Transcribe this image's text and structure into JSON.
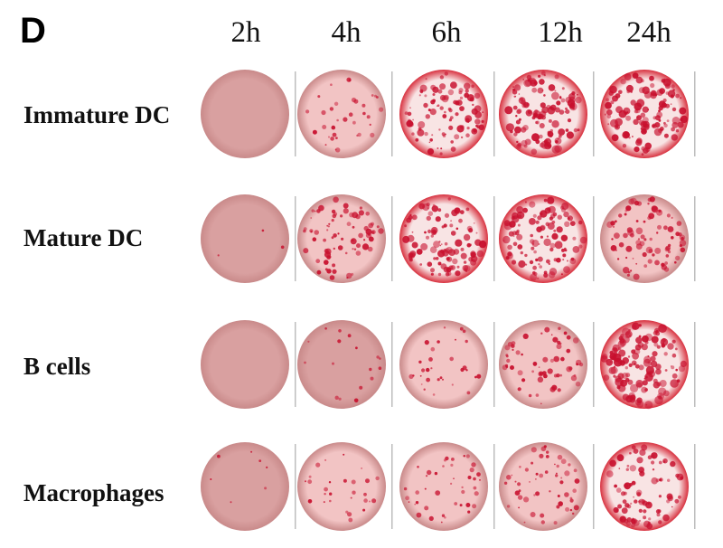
{
  "panel_label": "D",
  "time_points": [
    "2h",
    "4h",
    "6h",
    "12h",
    "24h"
  ],
  "rows": [
    {
      "label": "Immature DC",
      "densities": [
        0.0,
        0.25,
        0.7,
        0.9,
        0.85
      ]
    },
    {
      "label": "Mature DC",
      "densities": [
        0.02,
        0.55,
        0.75,
        0.8,
        0.6
      ]
    },
    {
      "label": "B cells",
      "densities": [
        0.0,
        0.12,
        0.22,
        0.45,
        0.95
      ]
    },
    {
      "label": "Macrophages",
      "densities": [
        0.05,
        0.2,
        0.3,
        0.4,
        0.65
      ]
    }
  ],
  "colors": {
    "well_background": "#d9a0a0",
    "well_light": "#f2c4c4",
    "spot": "#c8102e",
    "divider": "#bdbdbd"
  }
}
